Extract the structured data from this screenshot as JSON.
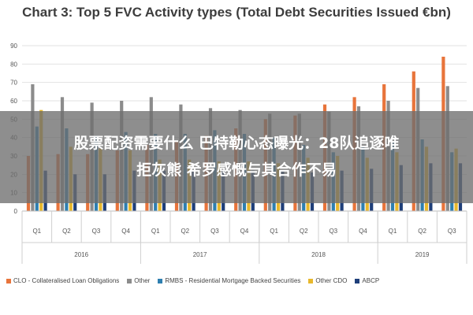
{
  "chart_data": {
    "type": "bar",
    "title": "Chart 3: Top 5 FVC Activity types (Total Debt Securities Issued €bn)",
    "ylim": [
      0,
      90
    ],
    "yticks": [
      0,
      10,
      20,
      30,
      40,
      50,
      60,
      70,
      80,
      90
    ],
    "grid": true,
    "legend_position": "bottom",
    "categories": [
      "Q1",
      "Q2",
      "Q3",
      "Q4",
      "Q1",
      "Q2",
      "Q3",
      "Q4",
      "Q1",
      "Q2",
      "Q3",
      "Q4",
      "Q1",
      "Q2",
      "Q3"
    ],
    "years": [
      {
        "label": "2016",
        "count": 4
      },
      {
        "label": "2017",
        "count": 4
      },
      {
        "label": "2018",
        "count": 4
      },
      {
        "label": "2019",
        "count": 3
      }
    ],
    "series": [
      {
        "name": "CLO - Collateralised Loan Obligations",
        "color": "#e8743b",
        "values": [
          30,
          31,
          31,
          33,
          36,
          38,
          41,
          45,
          50,
          52,
          58,
          62,
          69,
          76,
          84
        ]
      },
      {
        "name": "Other",
        "color": "#8c8c8c",
        "values": [
          69,
          62,
          59,
          60,
          62,
          58,
          56,
          55,
          53,
          53,
          54,
          57,
          60,
          67,
          68
        ]
      },
      {
        "name": "RMBS - Residential Mortgage Backed Securities",
        "color": "#2e7fb0",
        "values": [
          46,
          45,
          41,
          43,
          42,
          42,
          44,
          42,
          40,
          36,
          32,
          35,
          38,
          39,
          32
        ]
      },
      {
        "name": "Other CDO",
        "color": "#e8b82c",
        "values": [
          55,
          35,
          34,
          33,
          28,
          28,
          27,
          27,
          26,
          29,
          30,
          29,
          32,
          35,
          34
        ]
      },
      {
        "name": "ABCP",
        "color": "#1f3f7a",
        "values": [
          22,
          20,
          20,
          22,
          22,
          22,
          22,
          22,
          22,
          21,
          22,
          23,
          25,
          26,
          26
        ]
      }
    ]
  },
  "overlay": {
    "line1": "股票配资需要什么 巴特勒心态曝光：28队追逐唯",
    "line2": "拒灰熊 希罗感慨与其合作不易"
  }
}
